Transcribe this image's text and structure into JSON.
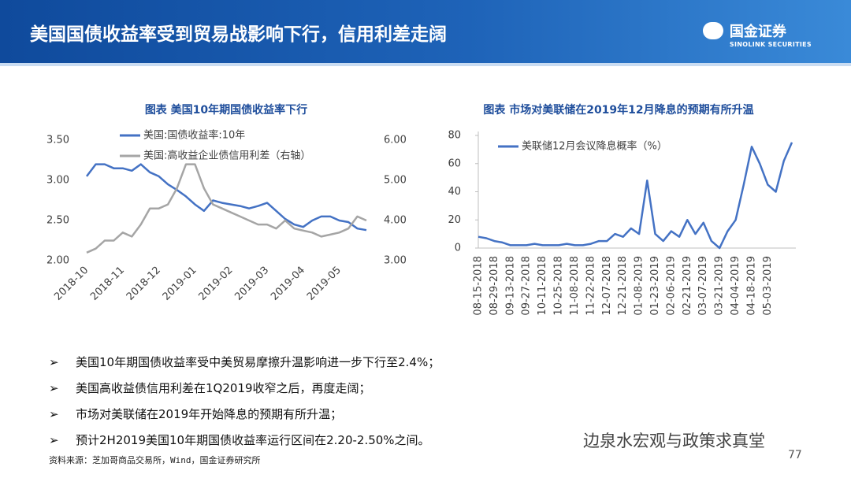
{
  "header": {
    "title": "美国国债收益率受到贸易战影响下行，信用利差走阔",
    "logo_name": "国金证券",
    "logo_en": "SINOLINK SECURITIES"
  },
  "chart_data": [
    {
      "type": "line",
      "title": "图表  美国10年期国债收益率下行",
      "categories": [
        "2018-10",
        null,
        null,
        null,
        "2018-11",
        null,
        null,
        null,
        "2018-12",
        null,
        null,
        null,
        "2019-01",
        null,
        null,
        null,
        "2019-02",
        null,
        null,
        null,
        "2019-03",
        null,
        null,
        null,
        "2019-04",
        null,
        null,
        null,
        "2019-05",
        null,
        null,
        null
      ],
      "series": [
        {
          "name": "美国:国债收益率:10年",
          "color": "#4472c4",
          "values": [
            3.05,
            3.2,
            3.2,
            3.15,
            3.15,
            3.12,
            3.2,
            3.1,
            3.05,
            2.95,
            2.88,
            2.8,
            2.7,
            2.62,
            2.75,
            2.72,
            2.7,
            2.68,
            2.65,
            2.68,
            2.72,
            2.62,
            2.52,
            2.45,
            2.42,
            2.5,
            2.55,
            2.55,
            2.5,
            2.48,
            2.4,
            2.38
          ]
        },
        {
          "name": "美国:高收益企业债信用利差（右轴）",
          "color": "#a5a5a5",
          "axis": "y2",
          "values": [
            3.2,
            3.3,
            3.5,
            3.5,
            3.7,
            3.6,
            3.9,
            4.3,
            4.3,
            4.4,
            4.8,
            5.4,
            5.4,
            4.8,
            4.4,
            4.3,
            4.2,
            4.1,
            4.0,
            3.9,
            3.9,
            3.8,
            4.0,
            3.8,
            3.75,
            3.7,
            3.6,
            3.65,
            3.7,
            3.8,
            4.1,
            4.0
          ]
        }
      ],
      "ylim": [
        2.0,
        3.5
      ],
      "yticks": [
        {
          "value": 2.0,
          "label": "2.00"
        },
        {
          "value": 2.5,
          "label": "2.50"
        },
        {
          "value": 3.0,
          "label": "3.00"
        },
        {
          "value": 3.5,
          "label": "3.50"
        }
      ],
      "y2lim": [
        3.0,
        6.0
      ],
      "y2ticks": [
        {
          "value": 3.0,
          "label": "3.00"
        },
        {
          "value": 4.0,
          "label": "4.00"
        },
        {
          "value": 5.0,
          "label": "5.00"
        },
        {
          "value": 6.0,
          "label": "6.00"
        }
      ],
      "legend": "top"
    },
    {
      "type": "line",
      "title": "图表  市场对美联储在2019年12月降息的预期有所升温",
      "categories": [
        "08-15-2018",
        null,
        "08-29-2018",
        null,
        "09-13-2018",
        null,
        "09-27-2018",
        null,
        "10-11-2018",
        null,
        "10-25-2018",
        null,
        "11-08-2018",
        null,
        "11-22-2018",
        null,
        "12-07-2018",
        null,
        "12-21-2018",
        null,
        "01-08-2019",
        null,
        "01-23-2019",
        null,
        "02-06-2019",
        null,
        "02-21-2019",
        null,
        "03-07-2019",
        null,
        "03-21-2019",
        null,
        "04-04-2019",
        null,
        "04-18-2019",
        null,
        "05-03-2019",
        null,
        null,
        null
      ],
      "series": [
        {
          "name": "美联储12月会议降息概率（%）",
          "color": "#4472c4",
          "values": [
            8,
            7,
            5,
            4,
            2,
            2,
            2,
            3,
            2,
            2,
            2,
            3,
            2,
            2,
            3,
            5,
            5,
            10,
            8,
            14,
            10,
            48,
            10,
            5,
            12,
            8,
            20,
            10,
            18,
            5,
            0,
            12,
            20,
            45,
            72,
            60,
            45,
            40,
            62,
            75
          ]
        }
      ],
      "ylim": [
        0,
        80
      ],
      "yticks": [
        0,
        20,
        40,
        60,
        80
      ],
      "legend": "top-left"
    }
  ],
  "bullets": [
    "美国10年期国债收益率受中美贸易摩擦升温影响进一步下行至2.4%；",
    "美国高收益债信用利差在1Q2019收窄之后，再度走阔；",
    "市场对美联储在2019年开始降息的预期有所升温；",
    "预计2H2019美国10年期国债收益率运行区间在2.20-2.50%之间。"
  ],
  "source": "资料来源：芝加哥商品交易所，Wind，国金证券研究所",
  "watermark": "边泉水宏观与政策求真堂",
  "page_number": "77"
}
